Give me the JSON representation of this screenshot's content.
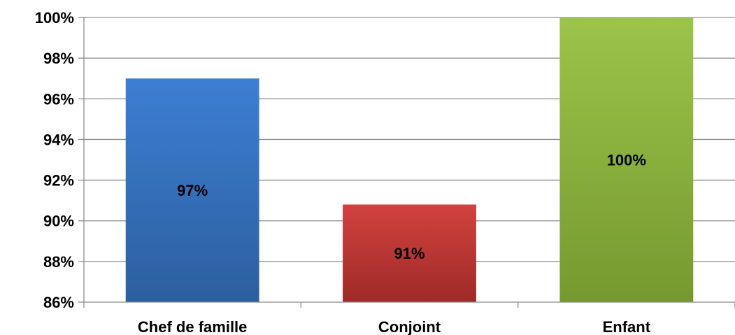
{
  "chart_data": {
    "type": "bar",
    "title": "",
    "xlabel": "",
    "ylabel": "",
    "categories": [
      "Chef de famille",
      "Conjoint",
      "Enfant"
    ],
    "values": [
      97,
      90.8,
      100
    ],
    "value_labels": [
      "97%",
      "91%",
      "100%"
    ],
    "ylim": [
      86,
      100
    ],
    "yticks": [
      86,
      88,
      90,
      92,
      94,
      96,
      98,
      100
    ],
    "ytick_labels": [
      "86%",
      "88%",
      "90%",
      "92%",
      "94%",
      "96%",
      "98%",
      "100%"
    ],
    "grid": true,
    "legend": "none",
    "bar_colors": [
      {
        "top": "#3d7fd2",
        "bottom": "#2c5f9f"
      },
      {
        "top": "#d2423f",
        "bottom": "#9e2a27"
      },
      {
        "top": "#9bc44a",
        "bottom": "#76992f"
      }
    ],
    "grid_color": "#8c8c8c",
    "axis_color": "#8c8c8c"
  }
}
